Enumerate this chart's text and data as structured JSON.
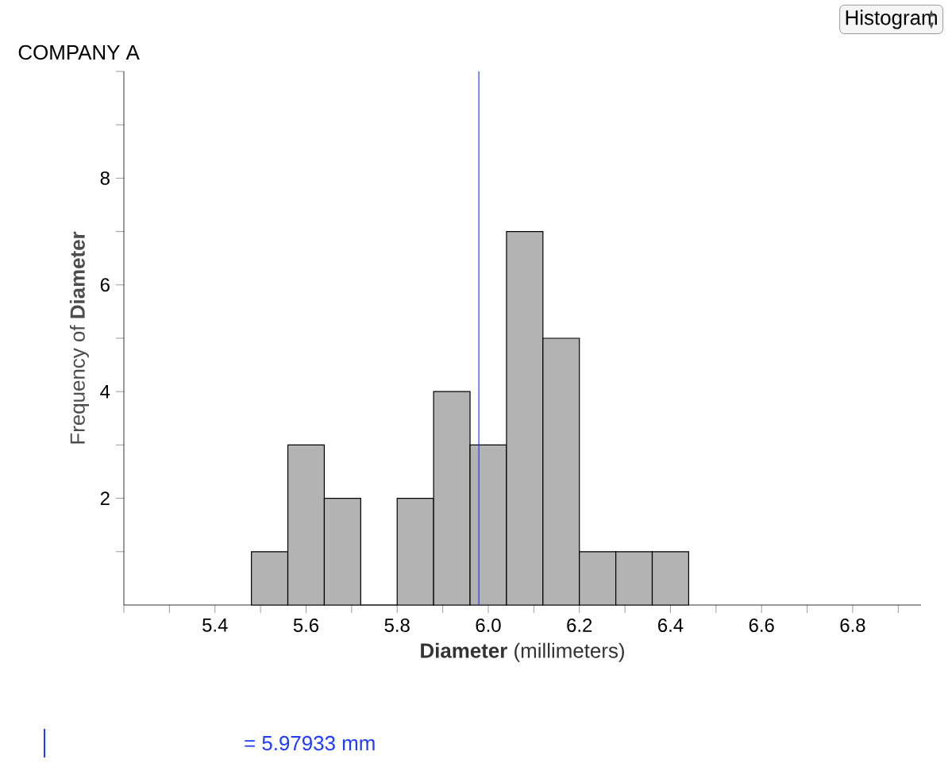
{
  "chart_data": {
    "type": "histogram",
    "title": "COMPANY A",
    "xlabel": "**Diameter** (millimeters)",
    "ylabel": "Frequency of **Diameter**",
    "bins": [
      5.48,
      5.56,
      5.64,
      5.72,
      5.8,
      5.88,
      5.96,
      6.04,
      6.12,
      6.2,
      6.28,
      6.36,
      6.44
    ],
    "values": [
      1,
      3,
      2,
      0,
      2,
      4,
      3,
      7,
      5,
      1,
      1,
      1
    ],
    "color": "#b3b3b3",
    "xlim": [
      5.2,
      6.95
    ],
    "xticks": [
      {
        "value": 5.2,
        "label": null
      },
      {
        "value": 5.3,
        "label": null
      },
      5.4,
      {
        "value": 5.5,
        "label": null
      },
      5.6,
      {
        "value": 5.7,
        "label": null
      },
      5.8,
      {
        "value": 5.9,
        "label": null
      },
      {
        "value": 6.0,
        "label": "6.0"
      },
      {
        "value": 6.1,
        "label": null
      },
      6.2,
      {
        "value": 6.3,
        "label": null
      },
      6.4,
      {
        "value": 6.5,
        "label": null
      },
      6.6,
      {
        "value": 6.7,
        "label": null
      },
      6.8,
      {
        "value": 6.9,
        "label": null
      }
    ],
    "ylim": [
      0,
      10
    ],
    "yticks": [
      {
        "value": 1,
        "label": null
      },
      2,
      {
        "value": 3,
        "label": null
      },
      4,
      {
        "value": 5,
        "label": null
      },
      6,
      {
        "value": 7,
        "label": null
      },
      8,
      {
        "value": 9,
        "label": null
      },
      {
        "value": 10,
        "label": null
      }
    ],
    "ref_lines": [
      {
        "axis": "x",
        "value": 5.97933,
        "label": "= 5.97933 mm",
        "color": "#1f3cff"
      }
    ],
    "annotations": [
      "Histogram"
    ],
    "grid": false
  }
}
